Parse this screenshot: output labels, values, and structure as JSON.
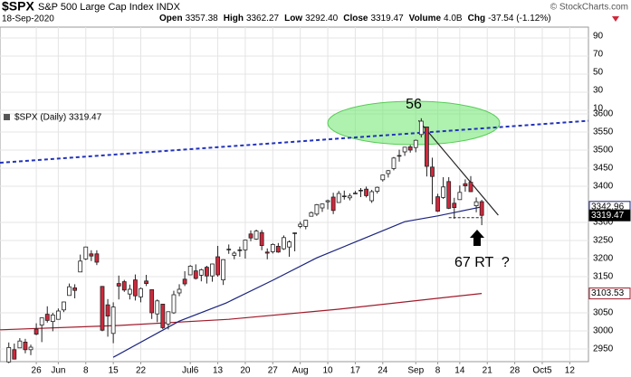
{
  "chart_data": {
    "type": "candlestick",
    "title": "$SPX",
    "subtitle": "S&P 500 Large Cap Index INDX",
    "source": "© StockCharts.com",
    "date": "18-Sep-2020",
    "quote": [
      {
        "label": "Open",
        "value": "3357.38"
      },
      {
        "label": "High",
        "value": "3362.27"
      },
      {
        "label": "Low",
        "value": "3292.40"
      },
      {
        "label": "Close",
        "value": "3319.47"
      },
      {
        "label": "Volume",
        "value": "4.0B"
      },
      {
        "label": "Chg",
        "value": "-37.54 (-1.12%)"
      }
    ],
    "legend": "$SPX (Daily) 3319.47",
    "xlim": [
      -1.6,
      105.4
    ],
    "xticks": [
      {
        "value": 5,
        "label": "26"
      },
      {
        "value": 9,
        "label": "Jun"
      },
      {
        "value": 14,
        "label": "8"
      },
      {
        "value": 19,
        "label": "15"
      },
      {
        "value": 24,
        "label": "22"
      },
      {
        "value": 33,
        "label": "Jul6"
      },
      {
        "value": 38,
        "label": "13"
      },
      {
        "value": 43,
        "label": "20"
      },
      {
        "value": 48,
        "label": "27"
      },
      {
        "value": 53,
        "label": "Aug"
      },
      {
        "value": 58,
        "label": "10"
      },
      {
        "value": 63,
        "label": "17"
      },
      {
        "value": 68,
        "label": "24"
      },
      {
        "value": 74,
        "label": "Sep"
      },
      {
        "value": 78,
        "label": "8"
      },
      {
        "value": 82,
        "label": "14"
      },
      {
        "value": 87,
        "label": "21"
      },
      {
        "value": 92,
        "label": "28"
      },
      {
        "value": 97,
        "label": "Oct5"
      },
      {
        "value": 102,
        "label": "12"
      }
    ],
    "ylim": [
      2915,
      3610
    ],
    "yticks": [
      3600,
      3550,
      3500,
      3450,
      3400,
      3300,
      3250,
      3200,
      3150,
      3050,
      3000,
      2950
    ],
    "grid": true,
    "indicator": {
      "ylim": [
        10,
        102
      ],
      "yticks": [
        90,
        70,
        50,
        30,
        10
      ]
    },
    "up_color": "#ffffff",
    "down_color": "#d0283c",
    "open": [
      2914,
      2948,
      2953,
      2969,
      2948,
      3005,
      3016,
      3046,
      3026,
      3032,
      3058,
      3098,
      3119,
      3163,
      3199,
      3213,
      3213,
      3123,
      3072,
      2993,
      3131,
      3136,
      3102,
      3141,
      3094,
      3138,
      3114,
      3047,
      3074,
      3019,
      3050,
      3105,
      3143,
      3155,
      3166,
      3154,
      3176,
      3152,
      3205,
      3141,
      3225,
      3209,
      3224,
      3224,
      3268,
      3254,
      3272,
      3218,
      3219,
      3234,
      3227,
      3232,
      3270,
      3289,
      3289,
      3317,
      3323,
      3340,
      3357,
      3370,
      3355,
      3372,
      3368,
      3380,
      3387,
      3392,
      3360,
      3386,
      3418,
      3435,
      3449,
      3485,
      3495,
      3509,
      3507,
      3543,
      3564,
      3453,
      3371,
      3369,
      3413,
      3353,
      3363,
      3407,
      3411,
      3346,
      3357.38
    ],
    "high": [
      2968,
      2965,
      2980,
      2978,
      2962,
      3021,
      3036,
      3068,
      3050,
      3062,
      3081,
      3131,
      3129,
      3211,
      3233,
      3223,
      3223,
      3124,
      3088,
      3079,
      3153,
      3141,
      3128,
      3156,
      3120,
      3155,
      3115,
      3087,
      3074,
      3054,
      3111,
      3129,
      3165,
      3182,
      3184,
      3172,
      3180,
      3186,
      3235,
      3198,
      3239,
      3220,
      3233,
      3252,
      3278,
      3280,
      3279,
      3228,
      3242,
      3243,
      3264,
      3250,
      3272,
      3302,
      3307,
      3330,
      3351,
      3352,
      3363,
      3382,
      3387,
      3388,
      3380,
      3387,
      3395,
      3399,
      3390,
      3399,
      3432,
      3445,
      3481,
      3501,
      3509,
      3514,
      3529,
      3588,
      3564,
      3479,
      3379,
      3425,
      3425,
      3368,
      3402,
      3419,
      3428,
      3369,
      3362.27
    ],
    "low": [
      2911,
      2921,
      2953,
      2938,
      2933,
      2988,
      2969,
      3023,
      2999,
      3032,
      3052,
      3098,
      3090,
      3163,
      3196,
      3193,
      3182,
      2999,
      2984,
      2966,
      3087,
      3108,
      3087,
      3084,
      3079,
      3124,
      3033,
      3024,
      3005,
      3004,
      3047,
      3096,
      3124,
      3155,
      3142,
      3137,
      3131,
      3136,
      3150,
      3127,
      3213,
      3198,
      3205,
      3200,
      3248,
      3252,
      3223,
      3198,
      3214,
      3216,
      3224,
      3205,
      3220,
      3284,
      3281,
      3317,
      3318,
      3329,
      3336,
      3323,
      3355,
      3363,
      3361,
      3379,
      3370,
      3369,
      3354,
      3380,
      3413,
      3424,
      3444,
      3468,
      3484,
      3493,
      3494,
      3535,
      3427,
      3350,
      3329,
      3365,
      3337,
      3310,
      3363,
      3385,
      3384,
      3328,
      3292.4
    ],
    "close": [
      2954,
      2922,
      2972,
      2948,
      2955,
      2991,
      3036,
      3029,
      3044,
      3055,
      3080,
      3122,
      3112,
      3193,
      3232,
      3207,
      3190,
      3002,
      3041,
      3066,
      3124,
      3113,
      3115,
      3097,
      3117,
      3131,
      3050,
      3083,
      3009,
      3053,
      3100,
      3115,
      3130,
      3179,
      3145,
      3169,
      3152,
      3185,
      3155,
      3197,
      3226,
      3215,
      3224,
      3251,
      3257,
      3276,
      3236,
      3215,
      3239,
      3218,
      3258,
      3246,
      3271,
      3295,
      3306,
      3327,
      3349,
      3351,
      3360,
      3333,
      3380,
      3373,
      3373,
      3381,
      3389,
      3374,
      3385,
      3397,
      3431,
      3443,
      3478,
      3484,
      3508,
      3500,
      3527,
      3580,
      3455,
      3427,
      3331,
      3398,
      3339,
      3341,
      3383,
      3401,
      3385,
      3357,
      3319.47
    ],
    "ma50": {
      "color": "#1a237e",
      "x": [
        19,
        31,
        39.5,
        48,
        56,
        64,
        72,
        78,
        86
      ],
      "values": [
        2927,
        3027,
        3077,
        3140,
        3202,
        3252,
        3302,
        3318,
        3342.96
      ]
    },
    "ma200": {
      "color": "#a01a2a",
      "x": [
        -1.6,
        20,
        40,
        60,
        86
      ],
      "values": [
        3003,
        3015,
        3032,
        3060,
        3103.53
      ]
    },
    "trendlines": [
      {
        "color": "#2233bb",
        "dash": true,
        "x": [
          -1.6,
          105.4
        ],
        "values": [
          3465,
          3581
        ]
      },
      {
        "color": "#222222",
        "dash": false,
        "x": [
          74.5,
          89
        ],
        "values": [
          3582,
          3320
        ]
      },
      {
        "color": "#222222",
        "dash": true,
        "x": [
          80,
          86
        ],
        "values": [
          3313,
          3313
        ]
      }
    ],
    "annotations": [
      "56",
      "67 RT  ?"
    ]
  }
}
